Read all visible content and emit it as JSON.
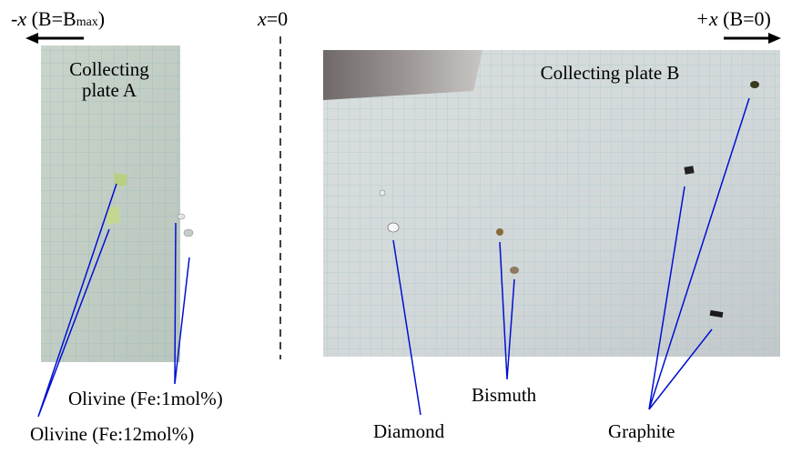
{
  "axis": {
    "left": {
      "symbol": "-x",
      "text": "(B=B",
      "subscript": "max",
      "close": ")"
    },
    "center": {
      "symbol": "x",
      "text": "=0"
    },
    "right": {
      "symbol": "+x",
      "text": "(B=0)"
    }
  },
  "panels": [
    {
      "title_lines": [
        "Collecting",
        "plate A"
      ]
    },
    {
      "title_lines": [
        "Collecting plate B"
      ]
    }
  ],
  "labels": {
    "olivine_1": "Olivine (Fe:1mol%)",
    "olivine_12": "Olivine (Fe:12mol%)",
    "diamond": "Diamond",
    "bismuth": "Bismuth",
    "graphite": "Graphite"
  }
}
